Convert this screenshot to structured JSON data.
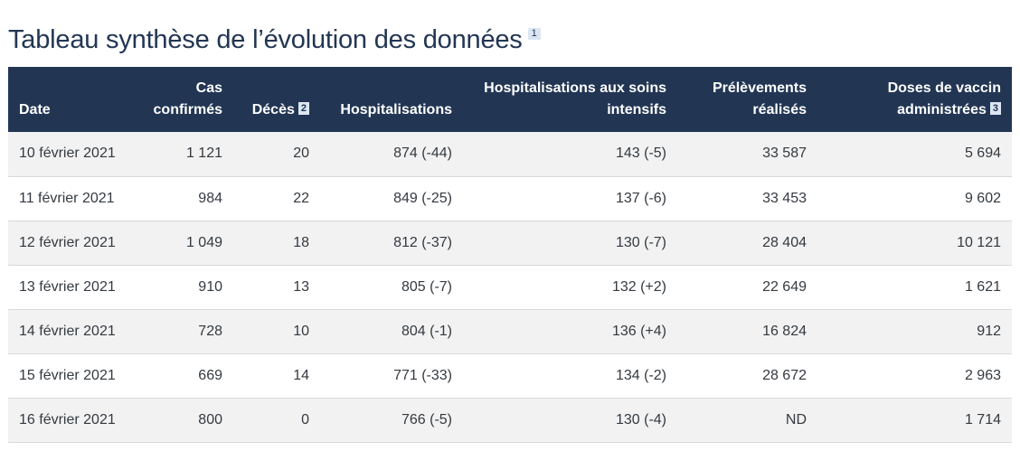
{
  "page": {
    "title": "Tableau synthèse de l’évolution des données",
    "title_footnote": "1"
  },
  "table": {
    "headers": {
      "date": "Date",
      "cas_line1": "Cas",
      "cas_line2": "confirmés",
      "deces": "Décès",
      "deces_footnote": "2",
      "hosp": "Hospitalisations",
      "si_line1": "Hospitalisations aux soins",
      "si_line2": "intensifs",
      "prel_line1": "Prélèvements",
      "prel_line2": "réalisés",
      "vacc_line1": "Doses de vaccin",
      "vacc_line2": "administrées",
      "vacc_footnote": "3"
    },
    "rows": [
      {
        "date": "10 février 2021",
        "cas": "1 121",
        "deces": "20",
        "hosp": "874 (-44)",
        "si": "143 (-5)",
        "prel": "33 587",
        "vacc": "5 694"
      },
      {
        "date": "11 février 2021",
        "cas": "984",
        "deces": "22",
        "hosp": "849 (-25)",
        "si": "137 (-6)",
        "prel": "33 453",
        "vacc": "9 602"
      },
      {
        "date": "12 février 2021",
        "cas": "1 049",
        "deces": "18",
        "hosp": "812 (-37)",
        "si": "130 (-7)",
        "prel": "28 404",
        "vacc": "10 121"
      },
      {
        "date": "13 février 2021",
        "cas": "910",
        "deces": "13",
        "hosp": "805 (-7)",
        "si": "132 (+2)",
        "prel": "22 649",
        "vacc": "1 621"
      },
      {
        "date": "14 février 2021",
        "cas": "728",
        "deces": "10",
        "hosp": "804 (-1)",
        "si": "136 (+4)",
        "prel": "16 824",
        "vacc": "912"
      },
      {
        "date": "15 février 2021",
        "cas": "669",
        "deces": "14",
        "hosp": "771 (-33)",
        "si": "134 (-2)",
        "prel": "28 672",
        "vacc": "2 963"
      },
      {
        "date": "16 février 2021",
        "cas": "800",
        "deces": "0",
        "hosp": "766 (-5)",
        "si": "130 (-4)",
        "prel": "ND",
        "vacc": "1 714"
      }
    ]
  }
}
